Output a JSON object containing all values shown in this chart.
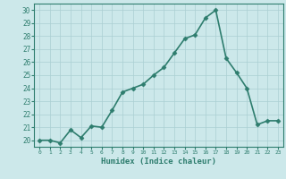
{
  "x": [
    0,
    1,
    2,
    3,
    4,
    5,
    6,
    7,
    8,
    9,
    10,
    11,
    12,
    13,
    14,
    15,
    16,
    17,
    18,
    19,
    20,
    21,
    22,
    23
  ],
  "y": [
    20,
    20,
    19.8,
    20.8,
    20.2,
    21.1,
    21.0,
    22.3,
    23.7,
    24.0,
    24.3,
    25.0,
    25.6,
    26.7,
    27.8,
    28.1,
    29.4,
    30.0,
    26.3,
    25.2,
    24.0,
    21.2,
    21.5,
    21.5
  ],
  "xlabel": "Humidex (Indice chaleur)",
  "xlim": [
    -0.5,
    23.5
  ],
  "ylim": [
    19.5,
    30.5
  ],
  "yticks": [
    20,
    21,
    22,
    23,
    24,
    25,
    26,
    27,
    28,
    29,
    30
  ],
  "xticks": [
    0,
    1,
    2,
    3,
    4,
    5,
    6,
    7,
    8,
    9,
    10,
    11,
    12,
    13,
    14,
    15,
    16,
    17,
    18,
    19,
    20,
    21,
    22,
    23
  ],
  "line_color": "#2e7d6e",
  "marker": "D",
  "marker_size": 2.5,
  "bg_color": "#cce8ea",
  "grid_color": "#aacfd2",
  "axes_color": "#2e7d6e",
  "tick_label_color": "#2e7d6e",
  "xlabel_color": "#2e7d6e",
  "line_width": 1.2
}
